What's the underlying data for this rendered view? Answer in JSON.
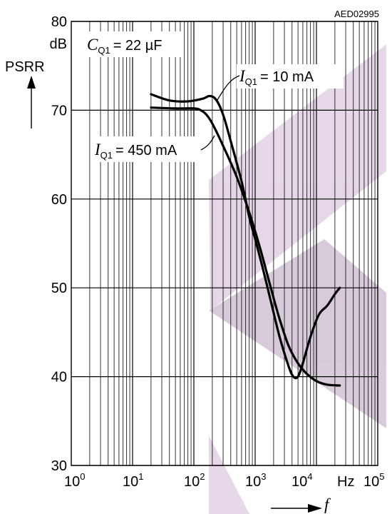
{
  "chart_data": {
    "type": "line",
    "reference_code": "AED02995",
    "ylabel": "PSRR",
    "yunit": "dB",
    "xlabel": "f",
    "xunit": "Hz",
    "x_scale": "log",
    "xlim": [
      1,
      100000
    ],
    "ylim": [
      30,
      80
    ],
    "grid": true,
    "y_ticks": [
      "30",
      "40",
      "50",
      "60",
      "70",
      "80"
    ],
    "x_ticks": [
      {
        "base": "10",
        "exp": "0"
      },
      {
        "base": "10",
        "exp": "1"
      },
      {
        "base": "10",
        "exp": "2"
      },
      {
        "base": "10",
        "exp": "3"
      },
      {
        "base": "10",
        "exp": "4"
      },
      {
        "base": "10",
        "exp": "5"
      }
    ],
    "condition": {
      "symbol": "C",
      "subscript": "Q1",
      "value": "= 22 µF"
    },
    "series": [
      {
        "name": "I_Q1 = 10 mA",
        "label": {
          "symbol": "I",
          "subscript": "Q1",
          "value": "= 10 mA"
        },
        "points": [
          [
            20,
            71.8
          ],
          [
            40,
            71.1
          ],
          [
            80,
            71.0
          ],
          [
            140,
            71.3
          ],
          [
            180,
            71.6
          ],
          [
            230,
            71.2
          ],
          [
            300,
            69.5
          ],
          [
            400,
            66.5
          ],
          [
            600,
            62.0
          ],
          [
            800,
            58.0
          ],
          [
            1000,
            55.5
          ],
          [
            1300,
            52.5
          ],
          [
            1800,
            48.5
          ],
          [
            2500,
            44.5
          ],
          [
            3500,
            41.2
          ],
          [
            4200,
            40.0
          ],
          [
            5000,
            40.0
          ],
          [
            6000,
            41.5
          ],
          [
            8000,
            44.5
          ],
          [
            11000,
            47.0
          ],
          [
            15000,
            48.0
          ],
          [
            20000,
            49.3
          ],
          [
            24000,
            50.0
          ]
        ]
      },
      {
        "name": "I_Q1 = 450 mA",
        "label": {
          "symbol": "I",
          "subscript": "Q1",
          "value": "= 450 mA"
        },
        "points": [
          [
            20,
            70.3
          ],
          [
            50,
            70.2
          ],
          [
            100,
            70.2
          ],
          [
            130,
            70.0
          ],
          [
            160,
            69.5
          ],
          [
            200,
            68.5
          ],
          [
            300,
            66.0
          ],
          [
            500,
            62.5
          ],
          [
            800,
            58.5
          ],
          [
            1200,
            54.5
          ],
          [
            1800,
            50.0
          ],
          [
            2500,
            46.5
          ],
          [
            3500,
            43.5
          ],
          [
            5000,
            41.5
          ],
          [
            7000,
            40.3
          ],
          [
            10000,
            39.5
          ],
          [
            15000,
            39.1
          ],
          [
            24000,
            39.0
          ]
        ]
      }
    ]
  }
}
